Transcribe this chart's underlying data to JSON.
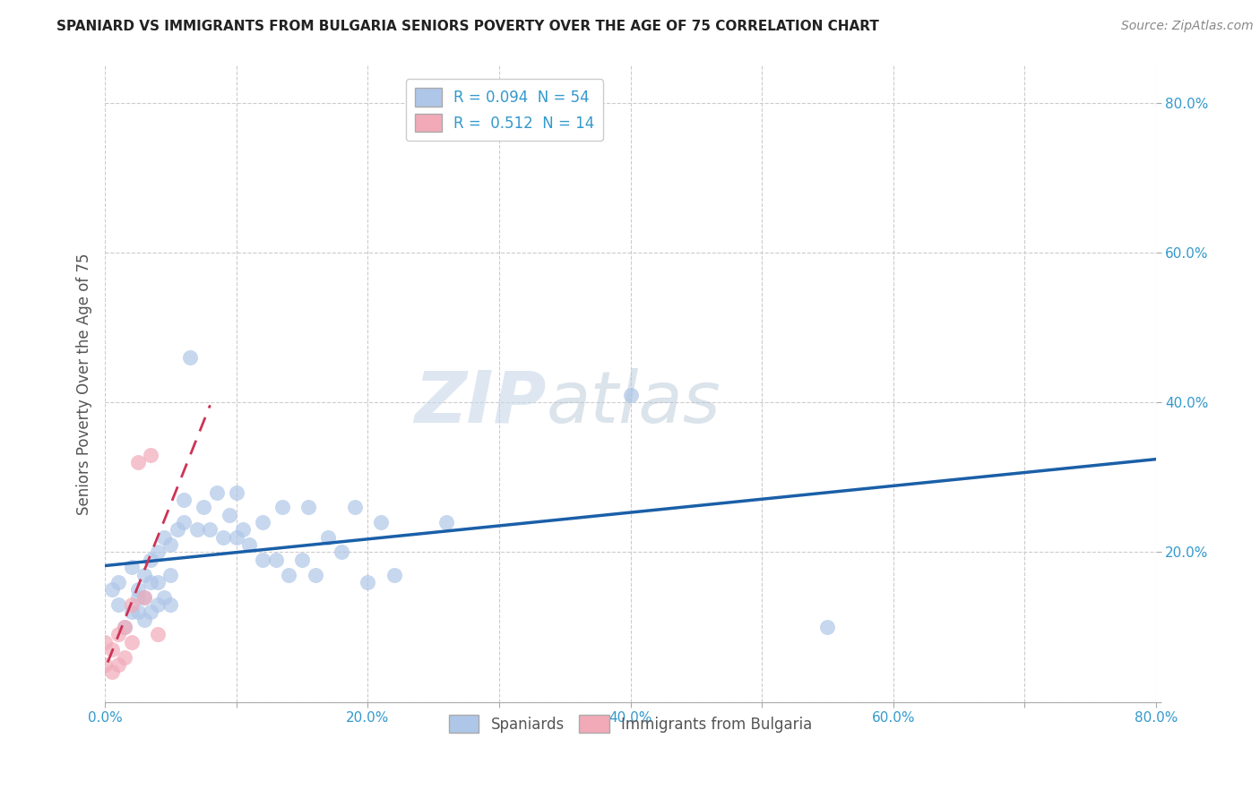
{
  "title": "SPANIARD VS IMMIGRANTS FROM BULGARIA SENIORS POVERTY OVER THE AGE OF 75 CORRELATION CHART",
  "source_text": "Source: ZipAtlas.com",
  "ylabel": "Seniors Poverty Over the Age of 75",
  "xlim": [
    0.0,
    0.8
  ],
  "ylim": [
    0.0,
    0.85
  ],
  "xticks": [
    0.0,
    0.1,
    0.2,
    0.3,
    0.4,
    0.5,
    0.6,
    0.7,
    0.8
  ],
  "yticks": [
    0.0,
    0.2,
    0.4,
    0.6,
    0.8
  ],
  "xticklabels": [
    "0.0%",
    "",
    "20.0%",
    "",
    "40.0%",
    "",
    "60.0%",
    "",
    "80.0%"
  ],
  "yticklabels": [
    "",
    "20.0%",
    "40.0%",
    "60.0%",
    "80.0%"
  ],
  "grid_color": "#cccccc",
  "background_color": "#ffffff",
  "spaniards_color": "#aec6e8",
  "immigrants_color": "#f2aab8",
  "spaniards_edge_color": "#7eaad4",
  "immigrants_edge_color": "#e07090",
  "spaniards_line_color": "#1a5fa8",
  "immigrants_line_color": "#cc3355",
  "spaniards_R": 0.094,
  "spaniards_N": 54,
  "immigrants_R": 0.512,
  "immigrants_N": 14,
  "watermark_zip": "ZIP",
  "watermark_atlas": "atlas",
  "legend_spaniards": "Spaniards",
  "legend_immigrants": "Immigrants from Bulgaria",
  "spaniards_x": [
    0.005,
    0.01,
    0.01,
    0.015,
    0.02,
    0.02,
    0.025,
    0.025,
    0.025,
    0.03,
    0.03,
    0.03,
    0.035,
    0.035,
    0.035,
    0.04,
    0.04,
    0.04,
    0.045,
    0.045,
    0.05,
    0.05,
    0.05,
    0.055,
    0.06,
    0.06,
    0.065,
    0.07,
    0.075,
    0.08,
    0.085,
    0.09,
    0.095,
    0.1,
    0.1,
    0.105,
    0.11,
    0.12,
    0.12,
    0.13,
    0.135,
    0.14,
    0.15,
    0.155,
    0.16,
    0.17,
    0.18,
    0.19,
    0.2,
    0.21,
    0.22,
    0.26,
    0.4,
    0.55
  ],
  "spaniards_y": [
    0.15,
    0.13,
    0.16,
    0.1,
    0.12,
    0.18,
    0.12,
    0.15,
    0.14,
    0.11,
    0.14,
    0.17,
    0.12,
    0.16,
    0.19,
    0.13,
    0.16,
    0.2,
    0.14,
    0.22,
    0.13,
    0.17,
    0.21,
    0.23,
    0.24,
    0.27,
    0.46,
    0.23,
    0.26,
    0.23,
    0.28,
    0.22,
    0.25,
    0.22,
    0.28,
    0.23,
    0.21,
    0.19,
    0.24,
    0.19,
    0.26,
    0.17,
    0.19,
    0.26,
    0.17,
    0.22,
    0.2,
    0.26,
    0.16,
    0.24,
    0.17,
    0.24,
    0.41,
    0.1
  ],
  "immigrants_x": [
    0.0,
    0.0,
    0.005,
    0.005,
    0.01,
    0.01,
    0.015,
    0.015,
    0.02,
    0.02,
    0.025,
    0.03,
    0.035,
    0.04
  ],
  "immigrants_y": [
    0.05,
    0.08,
    0.04,
    0.07,
    0.05,
    0.09,
    0.06,
    0.1,
    0.08,
    0.13,
    0.32,
    0.14,
    0.33,
    0.09
  ]
}
